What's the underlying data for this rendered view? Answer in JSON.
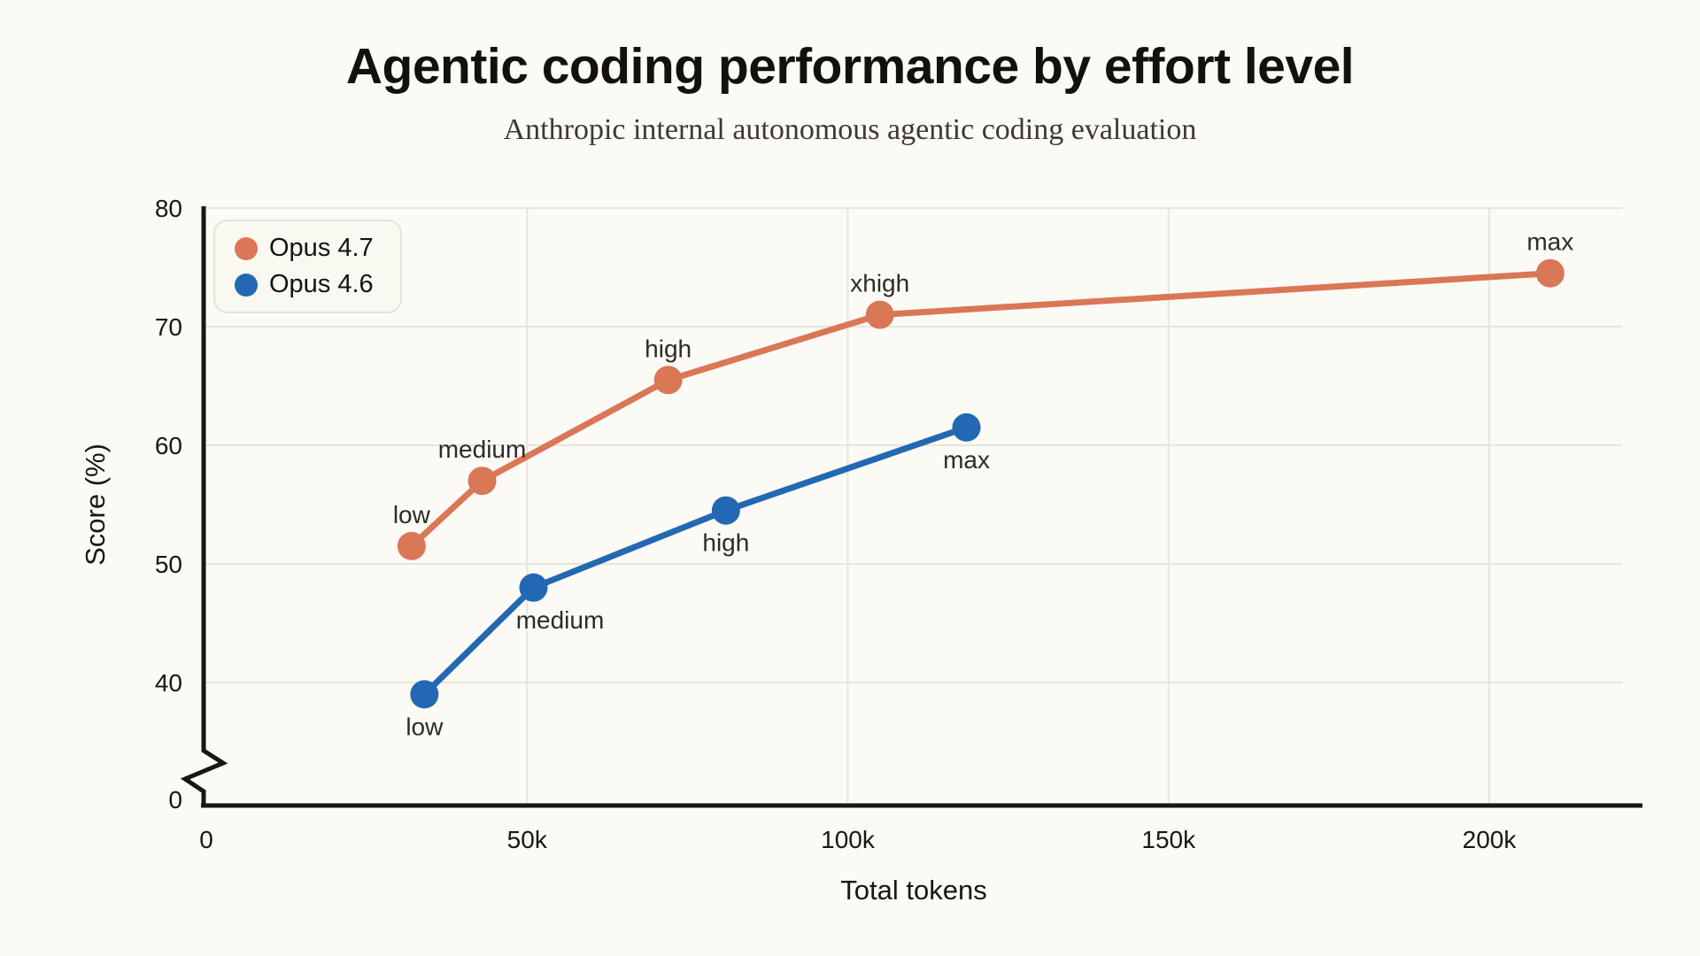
{
  "page": {
    "title": "Agentic coding performance by effort level",
    "subtitle": "Anthropic internal autonomous agentic coding evaluation"
  },
  "chart_data": {
    "type": "line",
    "title": "Agentic coding performance by effort level",
    "subtitle": "Anthropic internal autonomous agentic coding evaluation",
    "xlabel": "Total tokens",
    "ylabel": "Score (%)",
    "x_ticks": [
      {
        "tokens": 0,
        "label": "0"
      },
      {
        "tokens": 50000,
        "label": "50k"
      },
      {
        "tokens": 100000,
        "label": "100k"
      },
      {
        "tokens": 150000,
        "label": "150k"
      },
      {
        "tokens": 200000,
        "label": "200k"
      }
    ],
    "y_ticks": [
      {
        "value": 0,
        "label": "0"
      },
      {
        "value": 40,
        "label": "40"
      },
      {
        "value": 50,
        "label": "50"
      },
      {
        "value": 60,
        "label": "60"
      },
      {
        "value": 70,
        "label": "70"
      },
      {
        "value": 80,
        "label": "80"
      }
    ],
    "y_axis_break": true,
    "grid": true,
    "legend_position": "top-left",
    "xlim": [
      0,
      220000
    ],
    "ylim_linear_region": [
      40,
      80
    ],
    "colors": {
      "background": "#FBFAF5",
      "gridline": "#E8E5DB",
      "axis": "#191613",
      "annotation_text": "#2E2B26"
    },
    "series": [
      {
        "name": "Opus 4.7",
        "color": "#D97757",
        "label_side": "above",
        "points": [
          {
            "label": "low",
            "tokens": 32000,
            "score": 51.5
          },
          {
            "label": "medium",
            "tokens": 43000,
            "score": 57
          },
          {
            "label": "high",
            "tokens": 72000,
            "score": 65.5
          },
          {
            "label": "xhigh",
            "tokens": 105000,
            "score": 71
          },
          {
            "label": "max",
            "tokens": 209500,
            "score": 74.5
          }
        ]
      },
      {
        "name": "Opus 4.6",
        "color": "#2268B2",
        "label_side": "below",
        "points": [
          {
            "label": "low",
            "tokens": 34000,
            "score": 39
          },
          {
            "label": "medium",
            "tokens": 51000,
            "score": 48,
            "label_dx": 30
          },
          {
            "label": "high",
            "tokens": 81000,
            "score": 54.5
          },
          {
            "label": "max",
            "tokens": 118500,
            "score": 61.5
          }
        ]
      }
    ]
  }
}
